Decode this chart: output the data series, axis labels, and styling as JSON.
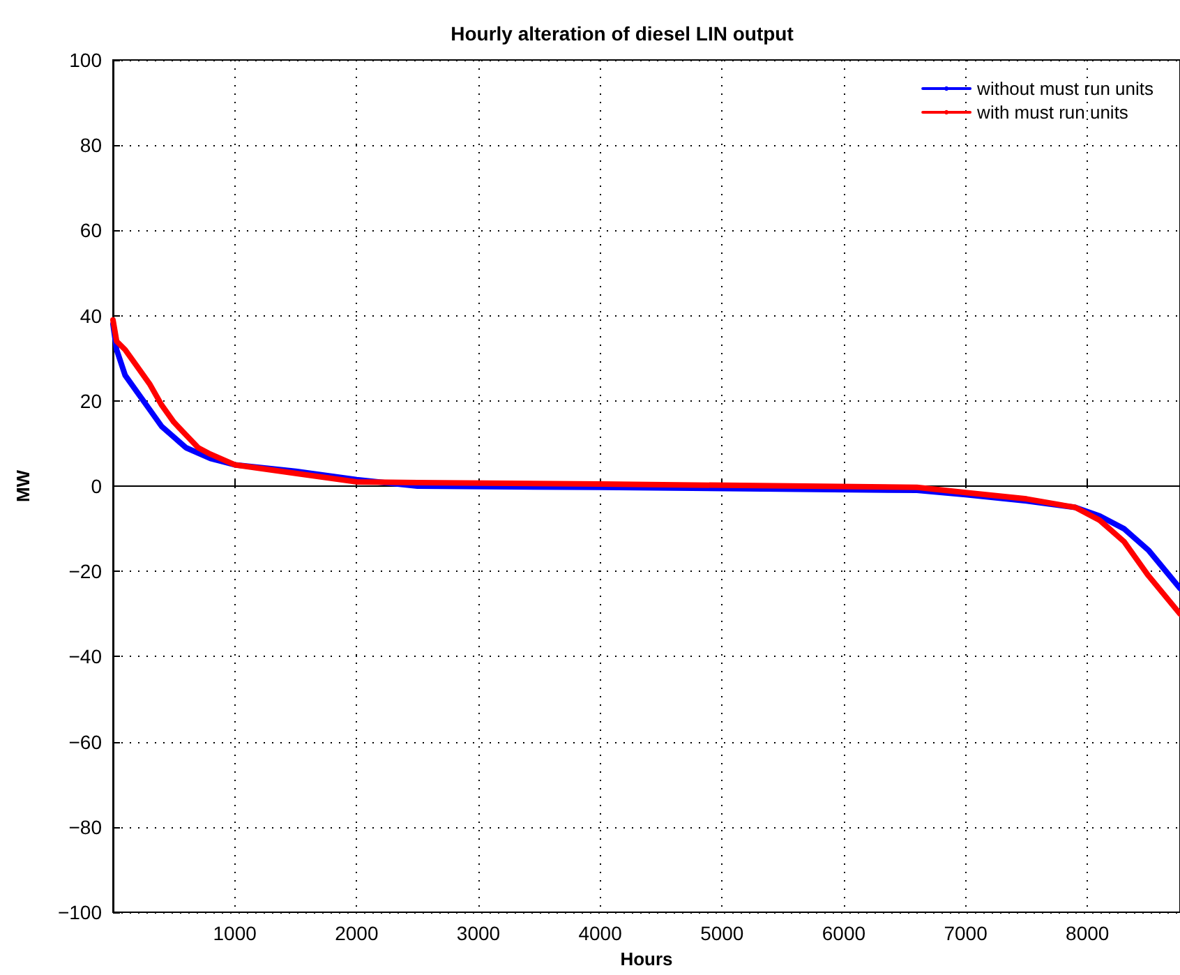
{
  "chart_data": {
    "type": "line",
    "title": "Hourly alteration of diesel LIN output",
    "xlabel": "Hours",
    "ylabel": "MW",
    "xlim": [
      0,
      8760
    ],
    "xticks": [
      1000,
      2000,
      3000,
      4000,
      5000,
      6000,
      7000,
      8000
    ],
    "ylim": [
      -100,
      100
    ],
    "yticks": [
      -100,
      -80,
      -60,
      -40,
      -20,
      0,
      20,
      40,
      60,
      80,
      100
    ],
    "grid": true,
    "legend": "top right",
    "marker": "none",
    "line_style": "solid",
    "series": [
      {
        "name": "without must run units",
        "color": "#0000ff",
        "x": [
          0,
          30,
          100,
          200,
          300,
          400,
          500,
          600,
          800,
          1000,
          1500,
          2000,
          2500,
          4000,
          6600,
          7000,
          7500,
          7900,
          8100,
          8300,
          8500,
          8760
        ],
        "values": [
          38,
          32,
          26,
          22,
          18,
          14,
          11.5,
          9,
          6.5,
          5,
          3.5,
          1.5,
          0,
          -0.3,
          -1,
          -2,
          -3.5,
          -5,
          -7,
          -10,
          -15,
          -24
        ]
      },
      {
        "name": "with must run units",
        "color": "#ff0000",
        "x": [
          0,
          30,
          100,
          200,
          300,
          400,
          500,
          600,
          700,
          800,
          1000,
          1500,
          2000,
          2500,
          4000,
          6600,
          7000,
          7500,
          7900,
          8100,
          8300,
          8500,
          8760
        ],
        "values": [
          39,
          34,
          32,
          28,
          24,
          19,
          15,
          12,
          9,
          7.5,
          5,
          3,
          1,
          0.8,
          0.5,
          -0.3,
          -1.5,
          -3,
          -5,
          -8,
          -13,
          -21,
          -30
        ]
      }
    ]
  }
}
